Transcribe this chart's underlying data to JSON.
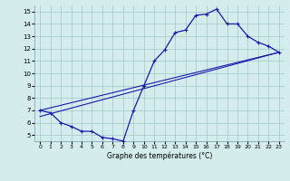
{
  "line1_x": [
    0,
    1,
    2,
    3,
    4,
    5,
    6,
    7,
    8,
    9,
    10,
    11,
    12,
    13,
    14,
    15,
    16,
    17,
    18,
    19,
    20,
    21,
    22,
    23
  ],
  "line1_y": [
    7.0,
    6.8,
    6.0,
    5.7,
    5.3,
    5.3,
    4.8,
    4.7,
    4.5,
    7.0,
    9.0,
    11.0,
    11.9,
    13.3,
    13.5,
    14.7,
    14.8,
    15.2,
    14.0,
    14.0,
    13.0,
    12.5,
    12.2,
    11.7
  ],
  "line2_x": [
    0,
    23
  ],
  "line2_y": [
    7.0,
    11.7
  ],
  "line3_x": [
    0,
    23
  ],
  "line3_y": [
    6.5,
    11.7
  ],
  "xlabel": "Graphe des températures (°C)",
  "xlim": [
    -0.5,
    23.5
  ],
  "ylim": [
    4.5,
    15.5
  ],
  "x_ticks": [
    0,
    1,
    2,
    3,
    4,
    5,
    6,
    7,
    8,
    9,
    10,
    11,
    12,
    13,
    14,
    15,
    16,
    17,
    18,
    19,
    20,
    21,
    22,
    23
  ],
  "yticks": [
    5,
    6,
    7,
    8,
    9,
    10,
    11,
    12,
    13,
    14,
    15
  ],
  "bg_color": "#d4ecec",
  "line_color": "#1a1aaa",
  "grid_color": "#a0c8c8",
  "marker": "+"
}
